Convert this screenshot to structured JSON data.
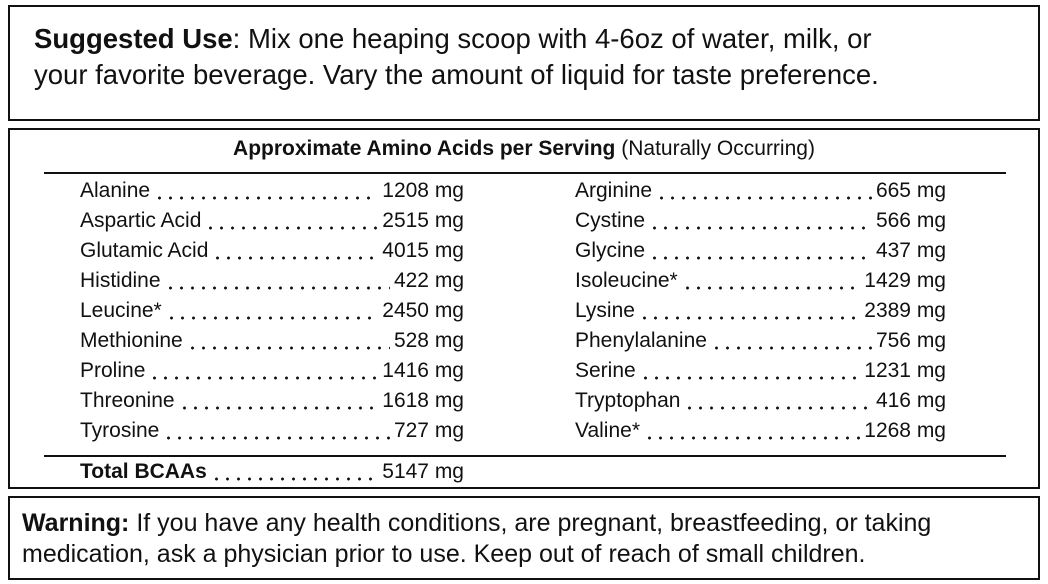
{
  "suggested_use": {
    "label": "Suggested Use",
    "text": [
      ": Mix one heaping scoop with 4-6oz of water, milk, or",
      "your favorite beverage. Vary the amount of liquid for taste preference."
    ]
  },
  "amino_table": {
    "title": "Approximate Amino Acids per Serving",
    "subtitle": "(Naturally Occurring)",
    "left": [
      [
        "Alanine",
        "1208 mg"
      ],
      [
        "Aspartic Acid",
        "2515 mg"
      ],
      [
        "Glutamic Acid",
        "4015 mg"
      ],
      [
        "Histidine",
        "422 mg"
      ],
      [
        "Leucine*",
        "2450 mg"
      ],
      [
        "Methionine",
        "528 mg"
      ],
      [
        "Proline",
        "1416 mg"
      ],
      [
        "Threonine",
        "1618 mg"
      ],
      [
        "Tyrosine",
        "727 mg"
      ]
    ],
    "right": [
      [
        "Arginine",
        "665 mg"
      ],
      [
        "Cystine",
        "566 mg"
      ],
      [
        "Glycine",
        "437 mg"
      ],
      [
        "Isoleucine*",
        "1429 mg"
      ],
      [
        "Lysine",
        "2389 mg"
      ],
      [
        "Phenylalanine",
        "756 mg"
      ],
      [
        "Serine",
        "1231 mg"
      ],
      [
        "Tryptophan",
        "416 mg"
      ],
      [
        "Valine*",
        "1268 mg"
      ]
    ],
    "total": [
      "Total BCAAs",
      "5147 mg"
    ]
  },
  "warning": {
    "label": "Warning:",
    "text": [
      " If you have any health conditions, are pregnant, breastfeeding, or taking",
      "medication, ask a physician prior to use. Keep out of reach of small children."
    ]
  }
}
